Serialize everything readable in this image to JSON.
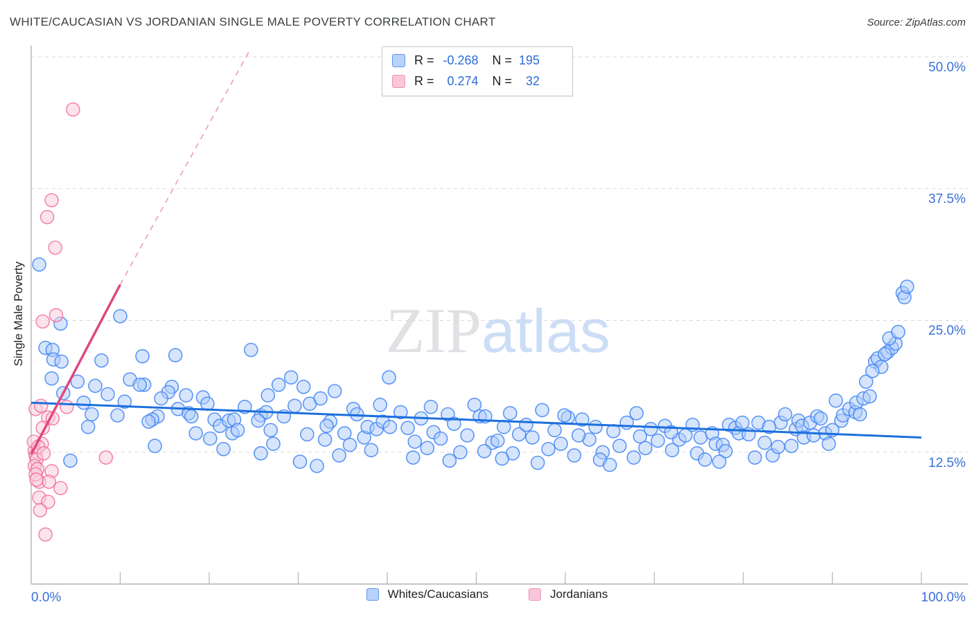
{
  "header": {
    "title": "WHITE/CAUCASIAN VS JORDANIAN SINGLE MALE POVERTY CORRELATION CHART",
    "source": "Source: ZipAtlas.com"
  },
  "watermark": {
    "zip": "ZIP",
    "atlas": "atlas"
  },
  "axes": {
    "y_title": "Single Male Poverty",
    "y_ticks": [
      {
        "label": "50.0%",
        "value": 50
      },
      {
        "label": "37.5%",
        "value": 37.5
      },
      {
        "label": "25.0%",
        "value": 25
      },
      {
        "label": "12.5%",
        "value": 12.5
      }
    ],
    "x_tick_left": {
      "label": "0.0%",
      "value": 0
    },
    "x_tick_right": {
      "label": "100.0%",
      "value": 100
    },
    "x_minor_tick_step_pct": 10,
    "grid": "dashed-horizontal"
  },
  "correlation_legend": {
    "rows": [
      {
        "series": "Whites/Caucasians",
        "r_label": "R =",
        "r_value": "-0.268",
        "n_label": "N =",
        "n_value": "195",
        "swatch_fill": "#b7d2fb",
        "swatch_border": "#5e95ea"
      },
      {
        "series": "Jordanians",
        "r_label": "R =",
        "r_value": "0.274",
        "n_label": "N =",
        "n_value": "32",
        "swatch_fill": "#f9c6da",
        "swatch_border": "#f092b8"
      }
    ]
  },
  "bottom_legend": [
    {
      "label": "Whites/Caucasians",
      "swatch_fill": "#b7d2fb",
      "swatch_border": "#5e95ea"
    },
    {
      "label": "Jordanians",
      "swatch_fill": "#f9c6da",
      "swatch_border": "#f092b8"
    }
  ],
  "chart_data": {
    "type": "scatter",
    "title": "WHITE/CAUCASIAN VS JORDANIAN SINGLE MALE POVERTY CORRELATION CHART",
    "xlabel": "",
    "ylabel": "Single Male Poverty",
    "xlim": [
      0,
      100
    ],
    "ylim": [
      0,
      52.5
    ],
    "grid": true,
    "legend_position": "bottom",
    "series": [
      {
        "name": "Whites/Caucasians",
        "r": -0.268,
        "n": 195,
        "fill": "rgba(174,203,250,0.50)",
        "stroke": "rgba(66,133,244,0.85)",
        "points": [
          [
            0.9,
            30.3
          ],
          [
            3.3,
            24.7
          ],
          [
            10.0,
            25.4
          ],
          [
            1.6,
            22.4
          ],
          [
            2.4,
            22.2
          ],
          [
            2.5,
            21.3
          ],
          [
            3.4,
            21.1
          ],
          [
            2.3,
            19.5
          ],
          [
            5.2,
            19.2
          ],
          [
            7.9,
            21.2
          ],
          [
            7.2,
            18.8
          ],
          [
            3.6,
            18.1
          ],
          [
            4.4,
            11.7
          ],
          [
            6.4,
            14.9
          ],
          [
            9.7,
            16.0
          ],
          [
            5.9,
            17.2
          ],
          [
            8.6,
            18.0
          ],
          [
            11.1,
            19.4
          ],
          [
            10.5,
            17.3
          ],
          [
            6.8,
            16.1
          ],
          [
            12.5,
            21.6
          ],
          [
            16.2,
            21.7
          ],
          [
            12.7,
            18.9
          ],
          [
            12.2,
            18.9
          ],
          [
            15.8,
            18.7
          ],
          [
            15.4,
            18.2
          ],
          [
            17.4,
            17.9
          ],
          [
            14.6,
            17.6
          ],
          [
            19.3,
            17.7
          ],
          [
            19.8,
            17.1
          ],
          [
            16.5,
            16.6
          ],
          [
            17.7,
            16.2
          ],
          [
            14.2,
            15.9
          ],
          [
            13.6,
            15.6
          ],
          [
            13.2,
            15.4
          ],
          [
            20.6,
            15.6
          ],
          [
            21.2,
            15.0
          ],
          [
            22.2,
            15.5
          ],
          [
            22.8,
            15.6
          ],
          [
            18.5,
            14.3
          ],
          [
            20.1,
            13.8
          ],
          [
            22.6,
            14.3
          ],
          [
            23.2,
            14.6
          ],
          [
            24.7,
            22.2
          ],
          [
            13.9,
            13.1
          ],
          [
            21.6,
            12.8
          ],
          [
            24.0,
            16.8
          ],
          [
            18.0,
            15.9
          ],
          [
            25.8,
            16.0
          ],
          [
            26.4,
            16.3
          ],
          [
            25.5,
            15.5
          ],
          [
            26.6,
            17.9
          ],
          [
            27.8,
            18.9
          ],
          [
            29.2,
            19.6
          ],
          [
            30.6,
            18.7
          ],
          [
            31.3,
            17.1
          ],
          [
            32.5,
            17.6
          ],
          [
            34.1,
            18.3
          ],
          [
            33.6,
            15.4
          ],
          [
            33.2,
            15.0
          ],
          [
            35.2,
            14.3
          ],
          [
            36.2,
            16.6
          ],
          [
            36.6,
            16.1
          ],
          [
            37.4,
            13.9
          ],
          [
            37.8,
            14.9
          ],
          [
            38.8,
            14.7
          ],
          [
            39.5,
            15.4
          ],
          [
            40.3,
            14.9
          ],
          [
            40.2,
            19.6
          ],
          [
            39.2,
            17.0
          ],
          [
            25.8,
            12.4
          ],
          [
            27.2,
            13.3
          ],
          [
            30.2,
            11.6
          ],
          [
            32.1,
            11.2
          ],
          [
            34.6,
            12.2
          ],
          [
            28.4,
            15.9
          ],
          [
            31.0,
            14.2
          ],
          [
            35.8,
            13.2
          ],
          [
            38.2,
            12.7
          ],
          [
            29.6,
            16.9
          ],
          [
            26.9,
            14.6
          ],
          [
            33.0,
            13.7
          ],
          [
            41.5,
            16.3
          ],
          [
            42.3,
            14.8
          ],
          [
            43.1,
            13.5
          ],
          [
            43.8,
            15.7
          ],
          [
            44.5,
            12.9
          ],
          [
            45.2,
            14.4
          ],
          [
            46.8,
            16.1
          ],
          [
            46.0,
            13.8
          ],
          [
            47.5,
            15.2
          ],
          [
            48.2,
            12.5
          ],
          [
            49.8,
            17.0
          ],
          [
            49.0,
            14.1
          ],
          [
            50.4,
            15.9
          ],
          [
            51.0,
            15.9
          ],
          [
            51.8,
            13.4
          ],
          [
            52.4,
            13.6
          ],
          [
            53.1,
            14.9
          ],
          [
            54.1,
            12.4
          ],
          [
            54.8,
            14.2
          ],
          [
            42.9,
            12.0
          ],
          [
            47.0,
            11.7
          ],
          [
            52.9,
            11.9
          ],
          [
            44.9,
            16.8
          ],
          [
            50.9,
            12.6
          ],
          [
            53.8,
            16.2
          ],
          [
            55.6,
            15.1
          ],
          [
            56.3,
            13.9
          ],
          [
            57.4,
            16.5
          ],
          [
            58.1,
            12.8
          ],
          [
            58.8,
            14.6
          ],
          [
            59.5,
            13.3
          ],
          [
            60.3,
            15.8
          ],
          [
            61.0,
            12.2
          ],
          [
            61.9,
            15.6
          ],
          [
            62.7,
            13.7
          ],
          [
            63.4,
            14.9
          ],
          [
            64.2,
            12.5
          ],
          [
            65.4,
            14.5
          ],
          [
            66.1,
            13.1
          ],
          [
            66.9,
            15.3
          ],
          [
            67.7,
            12.0
          ],
          [
            68.4,
            14.0
          ],
          [
            69.6,
            14.7
          ],
          [
            69.0,
            12.9
          ],
          [
            56.9,
            11.5
          ],
          [
            63.9,
            11.8
          ],
          [
            68.0,
            16.2
          ],
          [
            59.9,
            16.0
          ],
          [
            65.0,
            11.3
          ],
          [
            61.5,
            14.1
          ],
          [
            70.4,
            13.6
          ],
          [
            71.2,
            15.0
          ],
          [
            72.0,
            12.7
          ],
          [
            72.8,
            13.7
          ],
          [
            73.5,
            14.1
          ],
          [
            74.3,
            15.1
          ],
          [
            74.8,
            12.4
          ],
          [
            75.2,
            13.9
          ],
          [
            75.7,
            11.8
          ],
          [
            76.5,
            14.3
          ],
          [
            76.9,
            13.3
          ],
          [
            77.7,
            13.2
          ],
          [
            78.0,
            12.6
          ],
          [
            78.4,
            15.1
          ],
          [
            79.1,
            14.8
          ],
          [
            79.5,
            14.3
          ],
          [
            79.9,
            15.3
          ],
          [
            80.6,
            14.2
          ],
          [
            81.3,
            12.0
          ],
          [
            81.7,
            15.3
          ],
          [
            82.4,
            13.4
          ],
          [
            83.3,
            12.2
          ],
          [
            83.9,
            13.0
          ],
          [
            84.2,
            15.3
          ],
          [
            84.7,
            16.1
          ],
          [
            85.4,
            13.1
          ],
          [
            85.9,
            14.7
          ],
          [
            71.9,
            14.4
          ],
          [
            77.3,
            11.6
          ],
          [
            82.9,
            14.9
          ],
          [
            86.2,
            15.5
          ],
          [
            86.6,
            15.0
          ],
          [
            86.8,
            13.9
          ],
          [
            87.5,
            15.3
          ],
          [
            88.3,
            15.9
          ],
          [
            88.7,
            15.7
          ],
          [
            89.2,
            14.3
          ],
          [
            89.6,
            13.3
          ],
          [
            90.4,
            17.4
          ],
          [
            91.0,
            15.5
          ],
          [
            91.2,
            16.0
          ],
          [
            91.9,
            16.6
          ],
          [
            92.6,
            16.3
          ],
          [
            92.7,
            17.2
          ],
          [
            93.5,
            17.6
          ],
          [
            93.8,
            19.2
          ],
          [
            94.2,
            17.8
          ],
          [
            94.8,
            21.1
          ],
          [
            95.1,
            21.4
          ],
          [
            95.5,
            20.6
          ],
          [
            96.2,
            22.0
          ],
          [
            96.7,
            22.4
          ],
          [
            97.1,
            22.8
          ],
          [
            97.9,
            27.6
          ],
          [
            98.1,
            27.2
          ],
          [
            90.0,
            14.6
          ],
          [
            87.9,
            14.1
          ],
          [
            93.1,
            16.1
          ],
          [
            95.9,
            21.8
          ],
          [
            94.5,
            20.2
          ],
          [
            96.4,
            23.3
          ],
          [
            97.4,
            23.9
          ],
          [
            98.4,
            28.2
          ]
        ]
      },
      {
        "name": "Jordanians",
        "r": 0.274,
        "n": 32,
        "fill": "rgba(250,205,222,0.55)",
        "stroke": "rgba(240,98,146,0.75)",
        "points": [
          [
            4.7,
            45.0
          ],
          [
            2.3,
            36.4
          ],
          [
            1.8,
            34.8
          ],
          [
            2.7,
            31.9
          ],
          [
            2.8,
            25.5
          ],
          [
            1.3,
            24.9
          ],
          [
            0.5,
            16.6
          ],
          [
            1.1,
            16.9
          ],
          [
            1.9,
            15.8
          ],
          [
            1.3,
            14.8
          ],
          [
            2.4,
            15.7
          ],
          [
            4.0,
            16.8
          ],
          [
            1.2,
            13.3
          ],
          [
            8.4,
            12.0
          ],
          [
            2.3,
            10.7
          ],
          [
            0.9,
            9.7
          ],
          [
            2.0,
            9.7
          ],
          [
            3.3,
            9.1
          ],
          [
            0.9,
            8.2
          ],
          [
            1.9,
            7.8
          ],
          [
            1.6,
            4.7
          ],
          [
            0.4,
            12.6
          ],
          [
            0.5,
            12.2
          ],
          [
            0.6,
            11.8
          ],
          [
            0.4,
            11.2
          ],
          [
            0.7,
            10.9
          ],
          [
            0.5,
            10.4
          ],
          [
            0.3,
            13.5
          ],
          [
            0.8,
            13.0
          ],
          [
            1.4,
            12.4
          ],
          [
            0.6,
            9.9
          ],
          [
            1.0,
            7.0
          ]
        ]
      }
    ],
    "trends": [
      {
        "series": "Whites/Caucasians",
        "style": "solid",
        "color": "#1c6fdc",
        "width": 3,
        "x1": 0,
        "y1": 17.2,
        "x2": 100,
        "y2": 13.9
      },
      {
        "series": "Jordanians",
        "style": "solid",
        "color": "#e0487f",
        "width": 3.5,
        "x1": 0,
        "y1": 12.3,
        "x2": 10,
        "y2": 28.4
      },
      {
        "series": "Jordanians",
        "style": "dashed",
        "color": "#ee9ab5",
        "width": 1.6,
        "x1": 10,
        "y1": 28.4,
        "x2": 24.6,
        "y2": 50.7
      }
    ]
  }
}
